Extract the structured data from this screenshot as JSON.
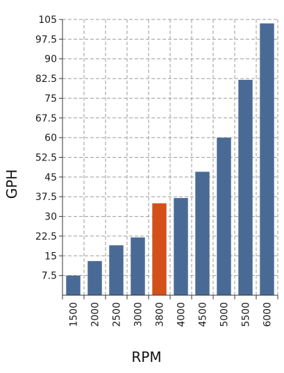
{
  "colors": {
    "bar": "#4a6a96",
    "highlight": "#d4501a",
    "grid": "#9a9a9a",
    "axis": "#333333",
    "background": "#ffffff"
  },
  "chart_data": {
    "type": "bar",
    "title": "",
    "xlabel": "RPM",
    "ylabel": "GPH",
    "categories": [
      "1500",
      "2000",
      "2500",
      "3000",
      "3800",
      "4000",
      "4500",
      "5000",
      "5500",
      "6000"
    ],
    "values": [
      7.5,
      13,
      19,
      22,
      35,
      37,
      47,
      60,
      82,
      103.5
    ],
    "highlight_category": "3800",
    "ylim": [
      0,
      105
    ],
    "yticks": [
      7.5,
      15,
      22.5,
      30,
      37.5,
      45,
      52.5,
      60,
      67.5,
      75,
      82.5,
      90,
      97.5,
      105
    ],
    "ytick_labels": [
      "7.5",
      "15",
      "22.5",
      "30",
      "37.5",
      "45",
      "52.5",
      "60",
      "67.5",
      "75",
      "82.5",
      "90",
      "97.5",
      "105"
    ],
    "grid": true,
    "grid_style": "dashed",
    "legend": "none"
  }
}
